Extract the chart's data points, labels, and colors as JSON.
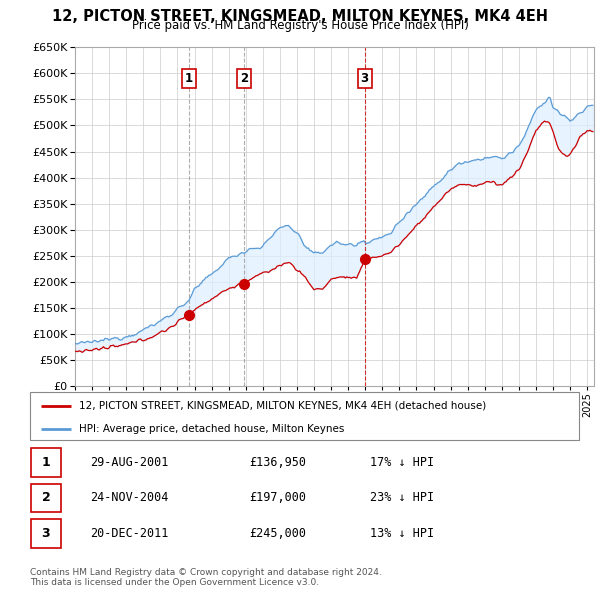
{
  "title": "12, PICTON STREET, KINGSMEAD, MILTON KEYNES, MK4 4EH",
  "subtitle": "Price paid vs. HM Land Registry's House Price Index (HPI)",
  "ylim": [
    0,
    650000
  ],
  "yticks": [
    0,
    50000,
    100000,
    150000,
    200000,
    250000,
    300000,
    350000,
    400000,
    450000,
    500000,
    550000,
    600000,
    650000
  ],
  "xlim_start": 1995.0,
  "xlim_end": 2025.4,
  "sales": [
    {
      "num": 1,
      "year": 2001.66,
      "price": 136950,
      "label": "1",
      "vline_style": "dashed_grey"
    },
    {
      "num": 2,
      "year": 2004.9,
      "price": 197000,
      "label": "2",
      "vline_style": "dashed_grey"
    },
    {
      "num": 3,
      "year": 2011.97,
      "price": 245000,
      "label": "3",
      "vline_style": "dashed_red"
    }
  ],
  "legend_property_label": "12, PICTON STREET, KINGSMEAD, MILTON KEYNES, MK4 4EH (detached house)",
  "legend_hpi_label": "HPI: Average price, detached house, Milton Keynes",
  "table_rows": [
    {
      "num": "1",
      "date": "29-AUG-2001",
      "price": "£136,950",
      "pct": "17% ↓ HPI"
    },
    {
      "num": "2",
      "date": "24-NOV-2004",
      "price": "£197,000",
      "pct": "23% ↓ HPI"
    },
    {
      "num": "3",
      "date": "20-DEC-2011",
      "price": "£245,000",
      "pct": "13% ↓ HPI"
    }
  ],
  "footer": "Contains HM Land Registry data © Crown copyright and database right 2024.\nThis data is licensed under the Open Government Licence v3.0.",
  "property_color": "#cc0000",
  "hpi_color": "#5b9bd5",
  "hpi_fill_color": "#ddeeff",
  "grid_color": "#cccccc",
  "background_color": "#ffffff",
  "label_box_color": "#cc0000",
  "vline_grey_color": "#999999",
  "vline_red_color": "#cc0000"
}
